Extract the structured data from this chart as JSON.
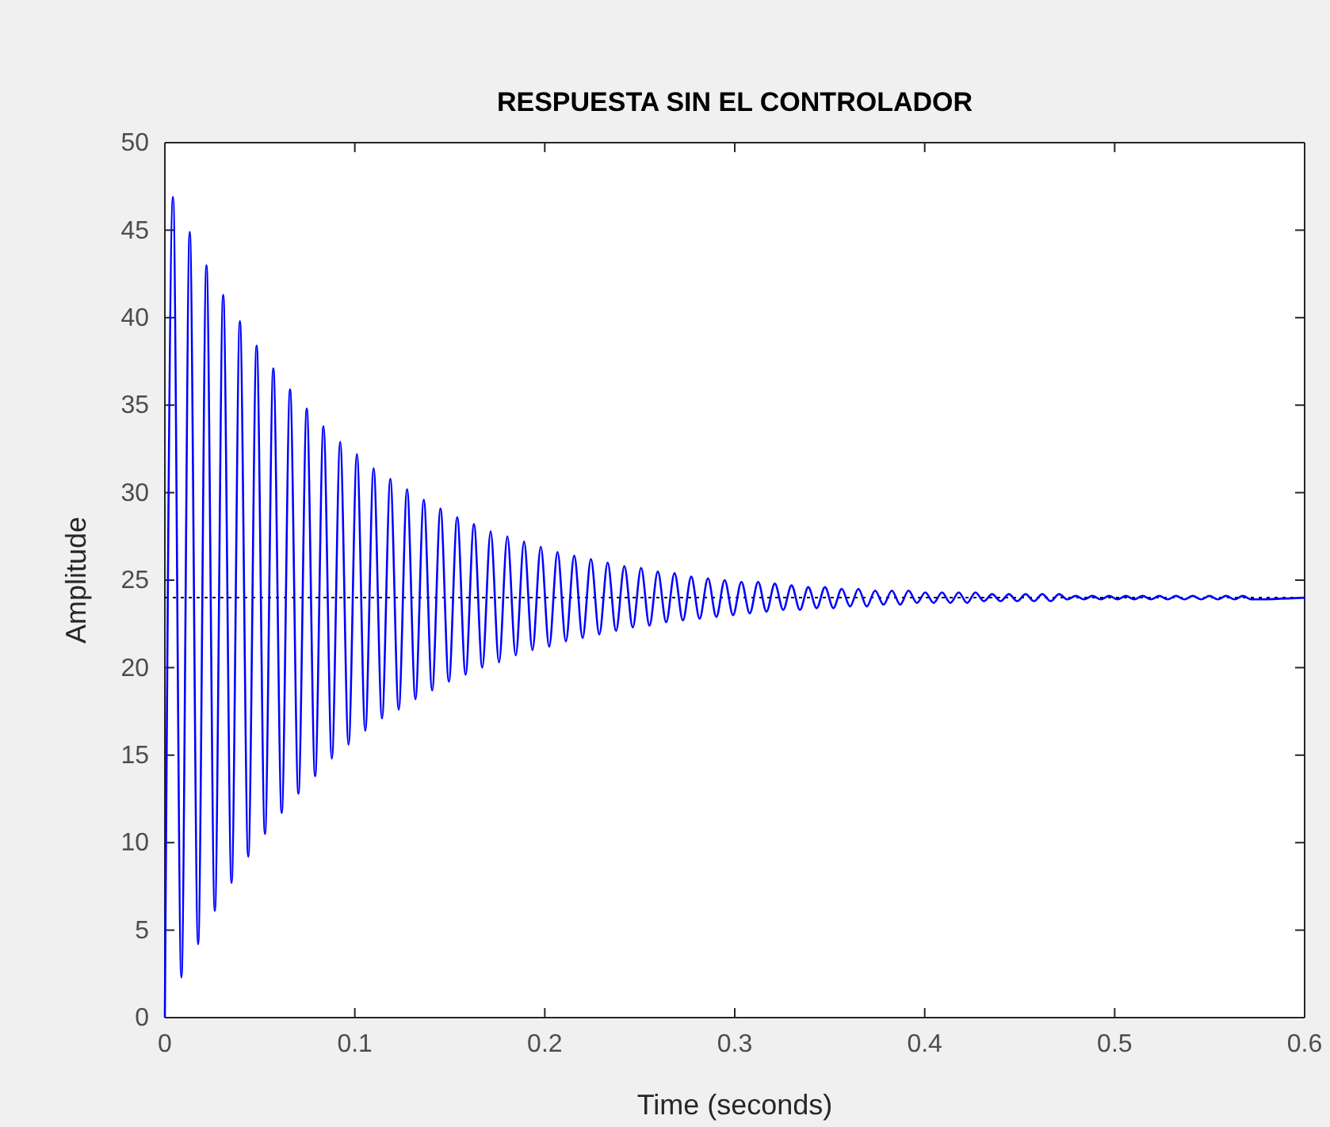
{
  "chart_data": {
    "type": "line",
    "title": "RESPUESTA SIN EL CONTROLADOR",
    "xlabel": "Time (seconds)",
    "ylabel": "Amplitude",
    "xlim": [
      0,
      0.6
    ],
    "xticks": [
      0,
      0.1,
      0.2,
      0.3,
      0.4,
      0.5,
      0.6
    ],
    "ylim": [
      0,
      50
    ],
    "yticks": [
      0,
      5,
      10,
      15,
      20,
      25,
      30,
      35,
      40,
      45,
      50
    ],
    "grid": false,
    "ref_lines": [
      {
        "axis": "y",
        "value": 24,
        "color": "#000000",
        "line_style": "dotted"
      }
    ],
    "series": [
      {
        "color": "#0000ff",
        "x": [
          0,
          0.0043,
          0.0087,
          0.0131,
          0.0175,
          0.0219,
          0.0263,
          0.0307,
          0.0351,
          0.0395,
          0.0439,
          0.0483,
          0.0527,
          0.0571,
          0.0615,
          0.0659,
          0.0703,
          0.0747,
          0.0791,
          0.0835,
          0.0879,
          0.0923,
          0.0967,
          0.1011,
          0.1055,
          0.1099,
          0.1143,
          0.1187,
          0.1231,
          0.1275,
          0.1319,
          0.1363,
          0.1407,
          0.1451,
          0.1495,
          0.1539,
          0.1583,
          0.1627,
          0.1671,
          0.1715,
          0.1759,
          0.1803,
          0.1847,
          0.1891,
          0.1935,
          0.1979,
          0.2023,
          0.2067,
          0.2111,
          0.2155,
          0.2199,
          0.2243,
          0.2287,
          0.2331,
          0.2375,
          0.2419,
          0.2463,
          0.2507,
          0.2551,
          0.2595,
          0.2639,
          0.2683,
          0.2727,
          0.2771,
          0.2815,
          0.2859,
          0.2903,
          0.2947,
          0.2991,
          0.3035,
          0.3079,
          0.3123,
          0.3167,
          0.3211,
          0.3255,
          0.3299,
          0.3343,
          0.3387,
          0.3431,
          0.3475,
          0.3519,
          0.3563,
          0.3607,
          0.3651,
          0.3695,
          0.3739,
          0.3783,
          0.3827,
          0.3871,
          0.3915,
          0.3959,
          0.4003,
          0.4047,
          0.4091,
          0.4135,
          0.4179,
          0.4223,
          0.4267,
          0.4311,
          0.4355,
          0.4399,
          0.4443,
          0.4487,
          0.4531,
          0.4575,
          0.4619,
          0.4663,
          0.4707,
          0.4751,
          0.4795,
          0.4839,
          0.4883,
          0.4927,
          0.4971,
          0.5015,
          0.5059,
          0.5103,
          0.5147,
          0.5191,
          0.5235,
          0.5279,
          0.5323,
          0.5367,
          0.5411,
          0.5455,
          0.5499,
          0.5543,
          0.5587,
          0.5631,
          0.5675,
          0.5719,
          0.6
        ],
        "values": [
          0,
          46.9,
          2.3,
          44.9,
          4.2,
          43.0,
          6.1,
          41.3,
          7.7,
          39.8,
          9.2,
          38.4,
          10.5,
          37.1,
          11.7,
          35.9,
          12.8,
          34.8,
          13.8,
          33.8,
          14.8,
          32.9,
          15.6,
          32.2,
          16.4,
          31.4,
          17.1,
          30.8,
          17.6,
          30.2,
          18.2,
          29.6,
          18.7,
          29.1,
          19.2,
          28.6,
          19.6,
          28.2,
          20.0,
          27.8,
          20.3,
          27.5,
          20.7,
          27.2,
          21.0,
          26.9,
          21.2,
          26.6,
          21.5,
          26.4,
          21.7,
          26.2,
          21.9,
          26.0,
          22.1,
          25.8,
          22.3,
          25.7,
          22.4,
          25.5,
          22.6,
          25.4,
          22.7,
          25.2,
          22.8,
          25.1,
          22.9,
          25.0,
          23.0,
          24.9,
          23.1,
          24.9,
          23.2,
          24.8,
          23.3,
          24.7,
          23.3,
          24.6,
          23.4,
          24.6,
          23.4,
          24.5,
          23.5,
          24.5,
          23.5,
          24.4,
          23.6,
          24.4,
          23.6,
          24.4,
          23.7,
          24.3,
          23.7,
          24.3,
          23.7,
          24.3,
          23.7,
          24.3,
          23.8,
          24.2,
          23.8,
          24.2,
          23.8,
          24.2,
          23.8,
          24.2,
          23.8,
          24.2,
          23.9,
          24.1,
          23.9,
          24.1,
          23.9,
          24.1,
          23.9,
          24.1,
          23.9,
          24.1,
          23.9,
          24.1,
          23.9,
          24.1,
          23.9,
          24.1,
          23.9,
          24.1,
          23.9,
          24.1,
          23.9,
          24.1,
          23.9,
          24.0
        ]
      }
    ]
  }
}
